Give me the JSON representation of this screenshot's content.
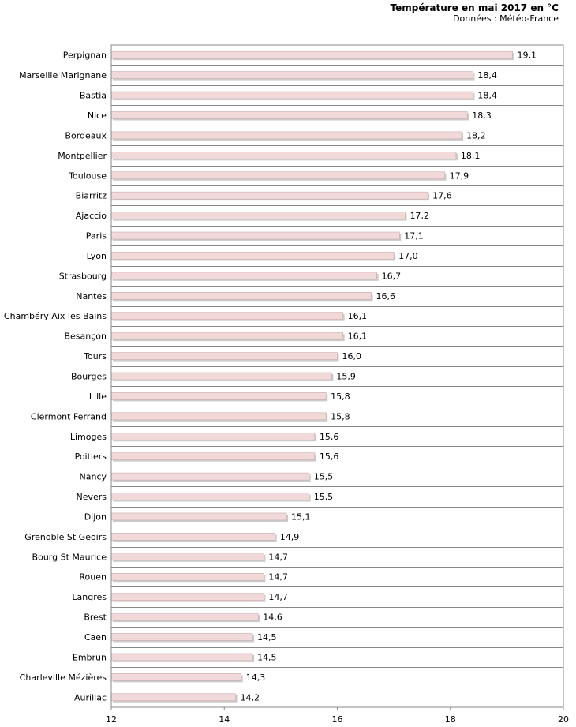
{
  "chart_data": {
    "type": "bar",
    "orientation": "horizontal",
    "title": "Température en mai 2017 en °C",
    "subtitle": "Données : Météo-France",
    "categories": [
      "Perpignan",
      "Marseille Marignane",
      "Bastia",
      "Nice",
      "Bordeaux",
      "Montpellier",
      "Toulouse",
      "Biarritz",
      "Ajaccio",
      "Paris",
      "Lyon",
      "Strasbourg",
      "Nantes",
      "Chambéry Aix les Bains",
      "Besançon",
      "Tours",
      "Bourges",
      "Lille",
      "Clermont Ferrand",
      "Limoges",
      "Poitiers",
      "Nancy",
      "Nevers",
      "Dijon",
      "Grenoble St Geoirs",
      "Bourg St Maurice",
      "Rouen",
      "Langres",
      "Brest",
      "Caen",
      "Embrun",
      "Charleville Mézières",
      "Aurillac"
    ],
    "values": [
      19.1,
      18.4,
      18.4,
      18.3,
      18.2,
      18.1,
      17.9,
      17.6,
      17.2,
      17.1,
      17.0,
      16.7,
      16.6,
      16.1,
      16.1,
      16.0,
      15.9,
      15.8,
      15.8,
      15.6,
      15.6,
      15.5,
      15.5,
      15.1,
      14.9,
      14.7,
      14.7,
      14.7,
      14.6,
      14.5,
      14.5,
      14.3,
      14.2
    ],
    "value_labels": [
      "19,1",
      "18,4",
      "18,4",
      "18,3",
      "18,2",
      "18,1",
      "17,9",
      "17,6",
      "17,2",
      "17,1",
      "17,0",
      "16,7",
      "16,6",
      "16,1",
      "16,1",
      "16,0",
      "15,9",
      "15,8",
      "15,8",
      "15,6",
      "15,6",
      "15,5",
      "15,5",
      "15,1",
      "14,9",
      "14,7",
      "14,7",
      "14,7",
      "14,6",
      "14,5",
      "14,5",
      "14,3",
      "14,2"
    ],
    "xlim": [
      12,
      20
    ],
    "xticks": [
      "12",
      "14",
      "16",
      "18",
      "20"
    ],
    "grid": true,
    "bar_color": "#f2d9d9",
    "bar_edge_color": "#c9aaaa",
    "grid_color": "#888888"
  }
}
